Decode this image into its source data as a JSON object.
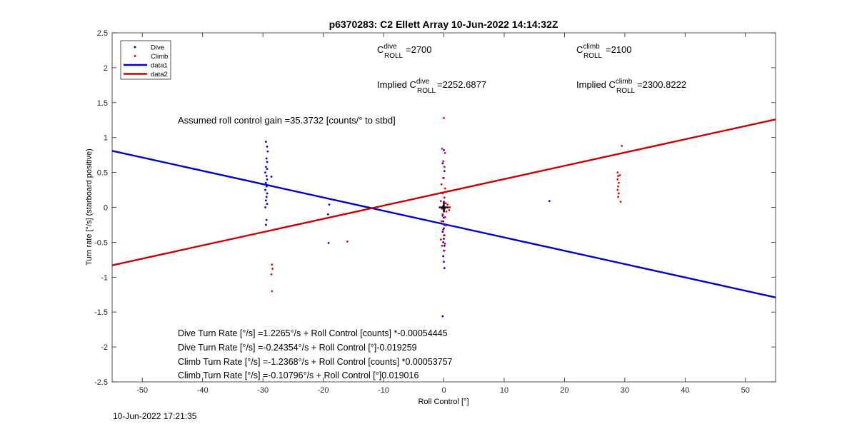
{
  "chart_data": {
    "type": "scatter",
    "title": "p6370283: C2 Ellett Array 10-Jun-2022 14:14:32Z",
    "xlabel": "Roll Control [°]",
    "ylabel": "Turn rate [°/s] (starboard positive)",
    "xlim": [
      -55,
      55
    ],
    "ylim": [
      -2.5,
      2.5
    ],
    "xticks": [
      -50,
      -40,
      -30,
      -20,
      -10,
      0,
      10,
      20,
      30,
      40,
      50
    ],
    "yticks": [
      2.5,
      2,
      1.5,
      1,
      0.5,
      0,
      -0.5,
      -1,
      -1.5,
      -2,
      -2.5
    ],
    "grid": false,
    "legend": {
      "placement": "top-left",
      "entries": [
        {
          "label": "Dive",
          "kind": "marker",
          "color": "#0000ff"
        },
        {
          "label": "Climb",
          "kind": "marker",
          "color": "#ff0000"
        },
        {
          "label": "data1",
          "kind": "line",
          "color": "#0000cc"
        },
        {
          "label": "data2",
          "kind": "line",
          "color": "#cc0000"
        }
      ]
    },
    "series": [
      {
        "name": "Dive",
        "color": "#0000ff",
        "points": [
          [
            -29.5,
            0.94
          ],
          [
            -29.3,
            0.87
          ],
          [
            -29.2,
            0.8
          ],
          [
            -29.4,
            0.7
          ],
          [
            -29.3,
            0.65
          ],
          [
            -29.5,
            0.58
          ],
          [
            -29.3,
            0.55
          ],
          [
            -29.6,
            0.5
          ],
          [
            -29.4,
            0.45
          ],
          [
            -29.3,
            0.4
          ],
          [
            -29.5,
            0.35
          ],
          [
            -29.4,
            0.3
          ],
          [
            -29.6,
            0.25
          ],
          [
            -29.3,
            0.2
          ],
          [
            -29.4,
            0.15
          ],
          [
            -29.5,
            0.1
          ],
          [
            -29.3,
            0.05
          ],
          [
            -29.6,
            0.0
          ],
          [
            -29.4,
            -0.18
          ],
          [
            -29.5,
            -0.25
          ],
          [
            -28.6,
            0.44
          ],
          [
            -19.0,
            0.04
          ],
          [
            -19.2,
            -0.1
          ],
          [
            -19.1,
            -0.51
          ],
          [
            0.0,
            0.82
          ],
          [
            -0.2,
            0.63
          ],
          [
            0.1,
            0.52
          ],
          [
            -0.1,
            0.42
          ],
          [
            0.0,
            0.08
          ],
          [
            -0.1,
            0.02
          ],
          [
            0.1,
            -0.02
          ],
          [
            0.0,
            -0.05
          ],
          [
            -0.2,
            -0.12
          ],
          [
            0.0,
            -0.15
          ],
          [
            -0.1,
            -0.2
          ],
          [
            0.1,
            -0.25
          ],
          [
            0.0,
            -0.3
          ],
          [
            -0.2,
            -0.35
          ],
          [
            0.1,
            -0.4
          ],
          [
            0.0,
            -0.45
          ],
          [
            -0.1,
            -0.5
          ],
          [
            0.1,
            -0.55
          ],
          [
            0.0,
            -0.62
          ],
          [
            -0.1,
            -0.7
          ],
          [
            0.0,
            -0.78
          ],
          [
            0.1,
            -0.87
          ],
          [
            -0.2,
            -1.56
          ],
          [
            17.5,
            0.09
          ]
        ]
      },
      {
        "name": "Climb",
        "color": "#ff0000",
        "points": [
          [
            -28.5,
            -0.82
          ],
          [
            -28.4,
            -0.88
          ],
          [
            -28.6,
            -0.96
          ],
          [
            -28.5,
            -1.2
          ],
          [
            -16.0,
            -0.49
          ],
          [
            0.0,
            1.28
          ],
          [
            -0.3,
            0.84
          ],
          [
            0.2,
            0.78
          ],
          [
            -0.1,
            0.66
          ],
          [
            0.1,
            0.58
          ],
          [
            0.0,
            0.42
          ],
          [
            -0.4,
            0.33
          ],
          [
            0.2,
            0.27
          ],
          [
            -0.2,
            0.2
          ],
          [
            0.1,
            0.14
          ],
          [
            -0.5,
            0.09
          ],
          [
            0.3,
            0.06
          ],
          [
            0.6,
            0.04
          ],
          [
            1.0,
            0.0
          ],
          [
            -0.3,
            -0.02
          ],
          [
            0.4,
            -0.06
          ],
          [
            0.9,
            -0.04
          ],
          [
            -0.2,
            -0.1
          ],
          [
            0.2,
            -0.14
          ],
          [
            -0.4,
            -0.2
          ],
          [
            0.3,
            -0.26
          ],
          [
            -0.1,
            -0.32
          ],
          [
            0.0,
            -0.4
          ],
          [
            -0.5,
            -0.46
          ],
          [
            0.2,
            -0.52
          ],
          [
            -0.3,
            -0.55
          ],
          [
            0.1,
            -0.62
          ],
          [
            29.5,
            0.88
          ],
          [
            28.8,
            0.5
          ],
          [
            29.2,
            0.46
          ],
          [
            28.9,
            0.45
          ],
          [
            28.8,
            0.4
          ],
          [
            29.0,
            0.35
          ],
          [
            28.9,
            0.3
          ],
          [
            28.8,
            0.25
          ],
          [
            29.0,
            0.2
          ],
          [
            28.9,
            0.15
          ],
          [
            29.3,
            0.08
          ]
        ]
      }
    ],
    "fit_lines": [
      {
        "name": "data1",
        "color": "#0000cc",
        "x": [
          -55,
          55
        ],
        "y": [
          0.81,
          -1.29
        ]
      },
      {
        "name": "data2",
        "color": "#cc0000",
        "x": [
          -55,
          55
        ],
        "y": [
          -0.83,
          1.26
        ]
      }
    ],
    "centroid": {
      "x": 0.0,
      "y": 0.0
    },
    "annotations": {
      "c_dive": {
        "prefix": "C",
        "sup": "dive",
        "sub": "ROLL",
        "value": "=2700"
      },
      "c_climb": {
        "prefix": "C",
        "sup": "climb",
        "sub": "ROLL",
        "value": "=2100"
      },
      "implied_dive": {
        "prefix": "Implied C",
        "sup": "dive",
        "sub": "ROLL",
        "value": "=2252.6877"
      },
      "implied_climb": {
        "prefix": "Implied C",
        "sup": "climb",
        "sub": "ROLL",
        "value": "=2300.8222"
      },
      "gain": "Assumed roll control gain =35.3732 [counts/° to stbd]",
      "equations": [
        "Dive Turn Rate [°/s] =1.2265°/s + Roll Control [counts] *-0.00054445",
        "Dive Turn Rate [°/s] =-0.24354°/s + Roll Control [°]-0.019259",
        "Climb Turn Rate [°/s] =-1.2368°/s + Roll Control [counts] *0.00053757",
        "Climb Turn Rate [°/s] =-0.10796°/s + Roll Control [°]0.019016"
      ]
    }
  },
  "footer": {
    "timestamp": "10-Jun-2022 17:21:35"
  }
}
